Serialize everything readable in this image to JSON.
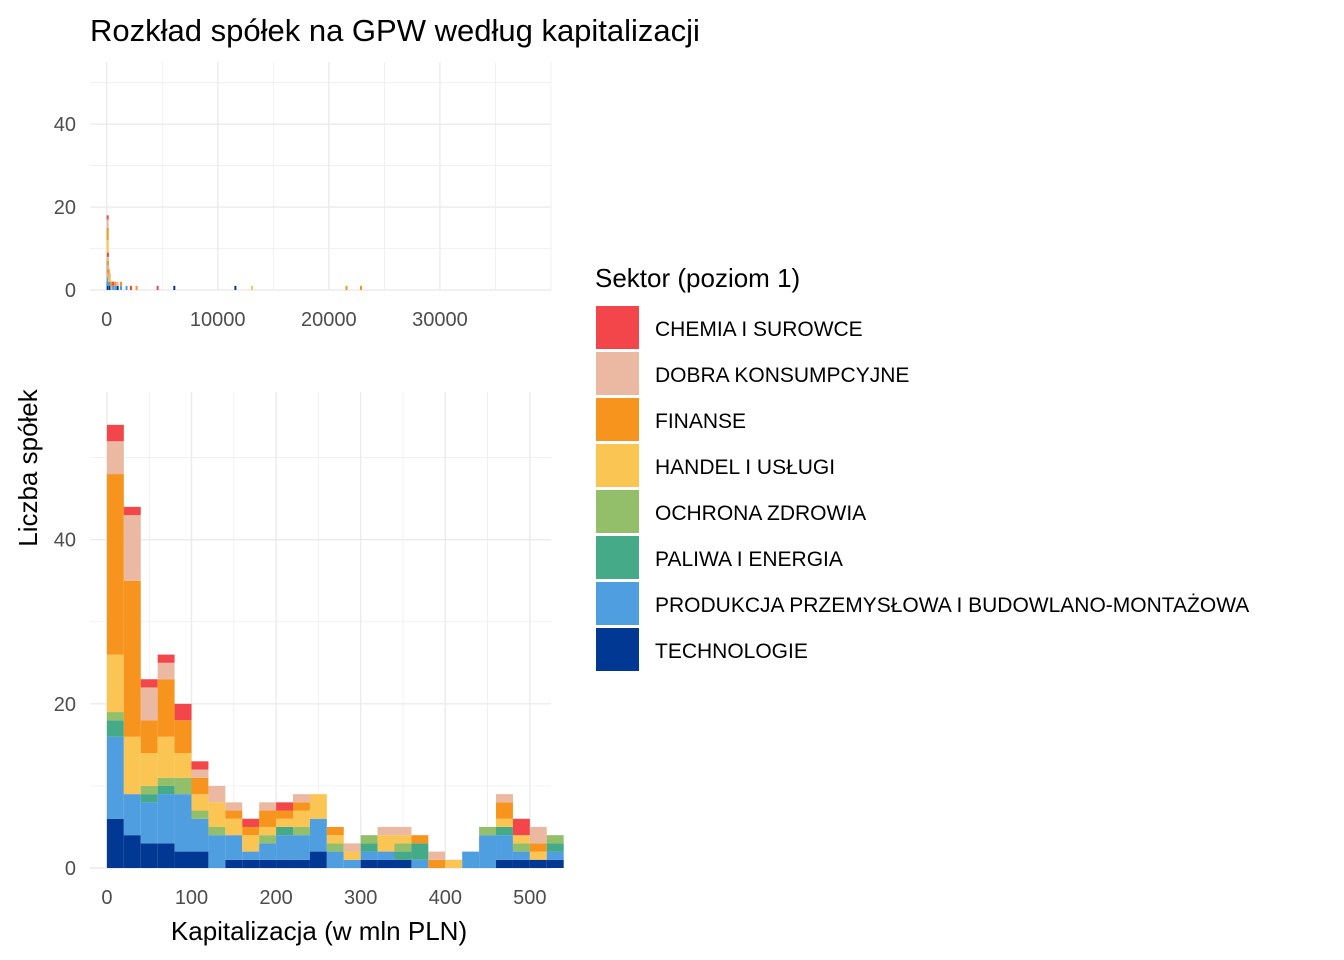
{
  "chart_data": {
    "type": "bar",
    "title": "Rozkład spółek na GPW według kapitalizacji",
    "xlabel": "Kapitalizacja (w mln PLN)",
    "ylabel": "Liczba spółek",
    "legend": {
      "title": "Sektor (poziom 1)",
      "placement": "right"
    },
    "stacked": true,
    "bin_width": 20,
    "grid": true,
    "sectors": [
      {
        "name": "CHEMIA I SUROWCE",
        "color": "#f2464b"
      },
      {
        "name": "DOBRA KONSUMPCYJNE",
        "color": "#ebb8a1"
      },
      {
        "name": "FINANSE",
        "color": "#f7941d"
      },
      {
        "name": "HANDEL I USŁUGI",
        "color": "#fbc553"
      },
      {
        "name": "OCHRONA ZDROWIA",
        "color": "#93bf6b"
      },
      {
        "name": "PALIWA I ENERGIA",
        "color": "#44aa88"
      },
      {
        "name": "PRODUKCJA PRZEMYSŁOWA I BUDOWLANO-MONTAŻOWA",
        "color": "#4f9ee0"
      },
      {
        "name": "TECHNOLOGIE",
        "color": "#003893"
      }
    ],
    "overview": {
      "xlim": [
        -1500,
        40000
      ],
      "ylim": [
        0,
        55
      ],
      "x_ticks": [
        0,
        10000,
        20000,
        30000
      ],
      "x_tick_labels": [
        "0",
        "10000",
        "20000",
        "30000"
      ],
      "y_ticks": [
        0,
        20,
        40
      ],
      "y_tick_labels": [
        "0",
        "20",
        "40"
      ],
      "bars": [
        {
          "x": 0,
          "counts": [
            1,
            2,
            3,
            4,
            1,
            1,
            4,
            2
          ]
        },
        {
          "x": 25,
          "counts": [
            1,
            1,
            2,
            1,
            1,
            0,
            2,
            1
          ]
        },
        {
          "x": 50,
          "counts": [
            0,
            1,
            1,
            1,
            0,
            0,
            2,
            1
          ]
        },
        {
          "x": 100,
          "counts": [
            0,
            0,
            1,
            1,
            1,
            0,
            1,
            1
          ]
        },
        {
          "x": 150,
          "counts": [
            0,
            0,
            1,
            1,
            0,
            0,
            2,
            0
          ]
        },
        {
          "x": 200,
          "counts": [
            0,
            1,
            0,
            1,
            0,
            0,
            1,
            1
          ]
        },
        {
          "x": 300,
          "counts": [
            0,
            0,
            1,
            0,
            0,
            0,
            1,
            0
          ]
        },
        {
          "x": 400,
          "counts": [
            0,
            0,
            1,
            1,
            0,
            0,
            0,
            0
          ]
        },
        {
          "x": 500,
          "counts": [
            1,
            0,
            0,
            0,
            0,
            0,
            1,
            0
          ]
        },
        {
          "x": 700,
          "counts": [
            0,
            0,
            1,
            0,
            0,
            0,
            1,
            0
          ]
        },
        {
          "x": 900,
          "counts": [
            0,
            1,
            0,
            0,
            0,
            0,
            0,
            1
          ]
        },
        {
          "x": 1200,
          "counts": [
            0,
            0,
            1,
            0,
            0,
            0,
            1,
            0
          ]
        },
        {
          "x": 1700,
          "counts": [
            0,
            0,
            0,
            0,
            0,
            0,
            1,
            0
          ]
        },
        {
          "x": 2100,
          "counts": [
            1,
            0,
            0,
            0,
            0,
            0,
            0,
            0
          ]
        },
        {
          "x": 2600,
          "counts": [
            0,
            0,
            1,
            0,
            0,
            0,
            0,
            0
          ]
        },
        {
          "x": 4500,
          "counts": [
            1,
            0,
            0,
            0,
            0,
            0,
            0,
            0
          ]
        },
        {
          "x": 6000,
          "counts": [
            0,
            0,
            0,
            0,
            0,
            0,
            0,
            1
          ]
        },
        {
          "x": 11500,
          "counts": [
            0,
            0,
            0,
            0,
            0,
            0,
            0,
            1
          ]
        },
        {
          "x": 13000,
          "counts": [
            0,
            0,
            0,
            1,
            0,
            0,
            0,
            0
          ]
        },
        {
          "x": 21500,
          "counts": [
            0,
            0,
            1,
            0,
            0,
            0,
            0,
            0
          ]
        },
        {
          "x": 22800,
          "counts": [
            0,
            0,
            1,
            0,
            0,
            0,
            0,
            0
          ]
        }
      ]
    },
    "detail": {
      "xlim": [
        -20,
        525
      ],
      "ylim": [
        0,
        58
      ],
      "x_ticks": [
        0,
        100,
        200,
        300,
        400,
        500
      ],
      "x_tick_labels": [
        "0",
        "100",
        "200",
        "300",
        "400",
        "500"
      ],
      "y_ticks": [
        0,
        20,
        40
      ],
      "y_tick_labels": [
        "0",
        "20",
        "40"
      ],
      "bars": [
        {
          "x": 0,
          "counts": [
            2,
            4,
            22,
            7,
            1,
            2,
            10,
            6
          ]
        },
        {
          "x": 20,
          "counts": [
            1,
            8,
            19,
            7,
            0,
            0,
            5,
            4
          ]
        },
        {
          "x": 40,
          "counts": [
            1,
            4,
            4,
            4,
            1,
            1,
            5,
            3
          ]
        },
        {
          "x": 60,
          "counts": [
            1,
            2,
            7,
            5,
            1,
            1,
            6,
            3
          ]
        },
        {
          "x": 80,
          "counts": [
            2,
            0,
            4,
            3,
            2,
            0,
            7,
            2
          ]
        },
        {
          "x": 100,
          "counts": [
            1,
            1,
            2,
            2,
            1,
            0,
            4,
            2
          ]
        },
        {
          "x": 120,
          "counts": [
            0,
            2,
            0,
            3,
            1,
            0,
            4,
            0
          ]
        },
        {
          "x": 140,
          "counts": [
            0,
            1,
            1,
            2,
            0,
            0,
            3,
            1
          ]
        },
        {
          "x": 160,
          "counts": [
            1,
            0,
            1,
            2,
            0,
            0,
            1,
            1
          ]
        },
        {
          "x": 180,
          "counts": [
            0,
            1,
            2,
            1,
            1,
            0,
            2,
            1
          ]
        },
        {
          "x": 200,
          "counts": [
            1,
            0,
            1,
            1,
            0,
            1,
            3,
            1
          ]
        },
        {
          "x": 220,
          "counts": [
            0,
            1,
            1,
            2,
            1,
            0,
            3,
            1
          ]
        },
        {
          "x": 240,
          "counts": [
            0,
            0,
            0,
            3,
            0,
            0,
            4,
            2
          ]
        },
        {
          "x": 260,
          "counts": [
            0,
            0,
            1,
            1,
            1,
            0,
            2,
            0
          ]
        },
        {
          "x": 280,
          "counts": [
            0,
            1,
            0,
            1,
            0,
            0,
            1,
            0
          ]
        },
        {
          "x": 300,
          "counts": [
            0,
            0,
            0,
            0,
            1,
            1,
            1,
            1
          ]
        },
        {
          "x": 320,
          "counts": [
            0,
            1,
            0,
            2,
            0,
            0,
            1,
            1
          ]
        },
        {
          "x": 340,
          "counts": [
            0,
            1,
            0,
            1,
            1,
            1,
            0,
            1
          ]
        },
        {
          "x": 360,
          "counts": [
            0,
            0,
            1,
            0,
            0,
            2,
            1,
            0
          ]
        },
        {
          "x": 380,
          "counts": [
            0,
            1,
            1,
            0,
            0,
            0,
            0,
            0
          ]
        },
        {
          "x": 400,
          "counts": [
            0,
            0,
            0,
            1,
            0,
            0,
            0,
            0
          ]
        },
        {
          "x": 420,
          "counts": [
            0,
            0,
            0,
            0,
            0,
            0,
            2,
            0
          ]
        },
        {
          "x": 440,
          "counts": [
            0,
            0,
            0,
            0,
            1,
            0,
            4,
            0
          ]
        },
        {
          "x": 460,
          "counts": [
            0,
            1,
            2,
            1,
            0,
            1,
            3,
            1
          ]
        },
        {
          "x": 480,
          "counts": [
            2,
            0,
            0,
            1,
            1,
            0,
            1,
            1
          ]
        },
        {
          "x": 500,
          "counts": [
            0,
            2,
            1,
            1,
            0,
            0,
            0,
            1
          ]
        },
        {
          "x": 520,
          "counts": [
            0,
            0,
            0,
            0,
            1,
            1,
            1,
            1
          ]
        }
      ]
    }
  }
}
